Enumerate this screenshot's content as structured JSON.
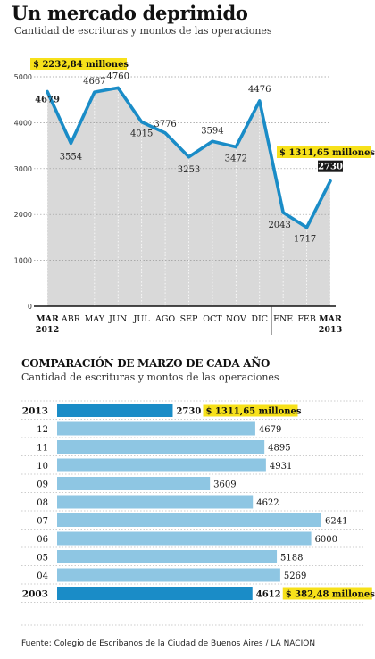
{
  "title": "Un mercado deprimido",
  "subtitle": "Cantidad de escrituras y montos de las operaciones",
  "chart_data": [
    {
      "type": "line",
      "x": [
        "MAR",
        "ABR",
        "MAY",
        "JUN",
        "JUL",
        "AGO",
        "SEP",
        "OCT",
        "NOV",
        "DIC",
        "ENE",
        "FEB",
        "MAR"
      ],
      "x_year_labels": {
        "first": "2012",
        "last": "2013"
      },
      "values": [
        4679,
        3554,
        4667,
        4760,
        4015,
        3776,
        3253,
        3594,
        3472,
        4476,
        2043,
        1717,
        2730
      ],
      "yticks": [
        "0",
        "1000",
        "2000",
        "3000",
        "4000",
        "5000"
      ],
      "ylim": [
        0,
        5000
      ],
      "annotations": [
        {
          "text": "$ 2232,84 millones",
          "point": 0
        },
        {
          "text": "$ 1311,65 millones",
          "point": 12
        }
      ],
      "grid": true,
      "colors": {
        "line": "#1a8cc7",
        "fill": "#d9d9d9",
        "highlight": "#f7e11a",
        "dark": "#1a1a1a"
      }
    },
    {
      "type": "bar",
      "title": "COMPARACIÓN DE MARZO DE CADA AÑO",
      "subtitle": "Cantidad de escrituras y montos de las operaciones",
      "categories": [
        "2013",
        "12",
        "11",
        "10",
        "09",
        "08",
        "07",
        "06",
        "05",
        "04",
        "2003"
      ],
      "values": [
        2730,
        4679,
        4895,
        4931,
        3609,
        4622,
        6241,
        6000,
        5188,
        5269,
        4612
      ],
      "annotations": [
        {
          "text": "$ 1311,65 millones",
          "category": "2013"
        },
        {
          "text": "$ 382,48 millones",
          "category": "2003"
        }
      ],
      "xlim": [
        0,
        6241
      ],
      "colors": {
        "highlight_bar": "#1a8cc7",
        "bar": "#8ec6e3",
        "label_bg": "#f7e11a"
      }
    }
  ],
  "source": "Fuente:  Colegio de Escribanos de la Ciudad de Buenos Aires / LA NACION"
}
